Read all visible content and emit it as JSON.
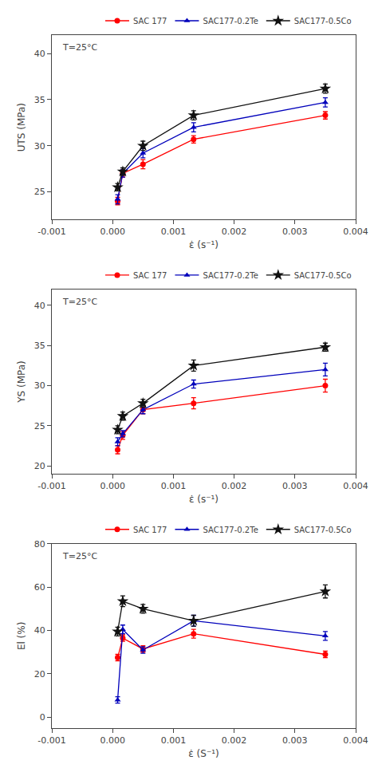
{
  "chart_data": [
    {
      "type": "line",
      "x": [
        8.3e-05,
        0.000167,
        0.0005,
        0.001333,
        0.0035
      ],
      "xlabel": "ε̇ (s⁻¹)",
      "ylabel": "UTS (MPa)",
      "xlim": [
        -0.001,
        0.004
      ],
      "xticks": [
        -0.001,
        {
          "value": 0,
          "label": "0.000"
        },
        0.001,
        0.002,
        0.003,
        0.004
      ],
      "ylim": [
        22,
        42
      ],
      "yticks": [
        25,
        30,
        35,
        40
      ],
      "annotation": "T=25°C",
      "legend": "upper right",
      "grid": false,
      "series": [
        {
          "name": "SAC 177",
          "color": "#ff0000",
          "marker": "circle",
          "line_style": "solid",
          "values": [
            24.0,
            27.0,
            28.0,
            30.7,
            33.3
          ],
          "errors": [
            0.4,
            0.4,
            0.5,
            0.4,
            0.4
          ]
        },
        {
          "name": "SAC177-0.2Te",
          "color": "#0000bb",
          "marker": "triangle-up",
          "line_style": "solid",
          "values": [
            24.2,
            27.0,
            29.2,
            32.0,
            34.7
          ],
          "errors": [
            0.5,
            0.4,
            0.5,
            0.5,
            0.5
          ]
        },
        {
          "name": "SAC177-0.5Co",
          "color": "#111111",
          "marker": "star",
          "line_style": "solid",
          "values": [
            25.5,
            27.2,
            30.0,
            33.3,
            36.2
          ],
          "errors": [
            0.4,
            0.4,
            0.5,
            0.5,
            0.5
          ]
        }
      ]
    },
    {
      "type": "line",
      "x": [
        8.3e-05,
        0.000167,
        0.0005,
        0.001333,
        0.0035
      ],
      "xlabel": "ε̇ (s⁻¹)",
      "ylabel": "YS (MPa)",
      "xlim": [
        -0.001,
        0.004
      ],
      "xticks": [
        -0.001,
        {
          "value": 0,
          "label": "0.000"
        },
        0.001,
        0.002,
        0.003,
        0.004
      ],
      "ylim": [
        19,
        42
      ],
      "yticks": [
        20,
        25,
        30,
        35,
        40
      ],
      "annotation": "T=25°C",
      "legend": "upper right",
      "grid": false,
      "series": [
        {
          "name": "SAC 177",
          "color": "#ff0000",
          "marker": "circle",
          "line_style": "solid",
          "values": [
            22.0,
            23.8,
            27.0,
            27.8,
            30.0
          ],
          "errors": [
            0.5,
            0.5,
            0.5,
            0.7,
            0.8
          ]
        },
        {
          "name": "SAC177-0.2Te",
          "color": "#0000bb",
          "marker": "triangle-up",
          "line_style": "solid",
          "values": [
            23.0,
            24.0,
            27.0,
            30.2,
            32.0
          ],
          "errors": [
            0.5,
            0.4,
            0.5,
            0.5,
            0.8
          ]
        },
        {
          "name": "SAC177-0.5Co",
          "color": "#111111",
          "marker": "star",
          "line_style": "solid",
          "values": [
            24.5,
            26.2,
            27.8,
            32.5,
            34.8
          ],
          "errors": [
            0.5,
            0.5,
            0.5,
            0.7,
            0.5
          ]
        }
      ]
    },
    {
      "type": "line",
      "x": [
        8.3e-05,
        0.000167,
        0.0005,
        0.001333,
        0.0035
      ],
      "xlabel": "ε̇ (S⁻¹)",
      "ylabel": "El (%)",
      "xlim": [
        -0.001,
        0.004
      ],
      "xticks": [
        -0.001,
        {
          "value": 0,
          "label": "0.000"
        },
        0.001,
        0.002,
        0.003,
        0.004
      ],
      "ylim": [
        -5,
        80
      ],
      "yticks": [
        0,
        20,
        40,
        60,
        80
      ],
      "annotation": "T=25°C",
      "legend": "upper right",
      "grid": false,
      "series": [
        {
          "name": "SAC 177",
          "color": "#ff0000",
          "marker": "circle",
          "line_style": "solid",
          "values": [
            27.5,
            36.5,
            31.5,
            38.5,
            29.0
          ],
          "errors": [
            1.5,
            1.5,
            1.5,
            2.0,
            1.5
          ]
        },
        {
          "name": "SAC177-0.2Te",
          "color": "#0000bb",
          "marker": "triangle-up",
          "line_style": "solid",
          "values": [
            8.0,
            40.5,
            31.0,
            44.5,
            37.5
          ],
          "errors": [
            1.5,
            2.0,
            1.5,
            2.5,
            2.0
          ]
        },
        {
          "name": "SAC177-0.5Co",
          "color": "#111111",
          "marker": "star",
          "line_style": "solid",
          "values": [
            39.5,
            53.5,
            50.0,
            44.5,
            58.0
          ],
          "errors": [
            2.0,
            2.5,
            2.0,
            2.5,
            3.0
          ]
        }
      ]
    }
  ]
}
